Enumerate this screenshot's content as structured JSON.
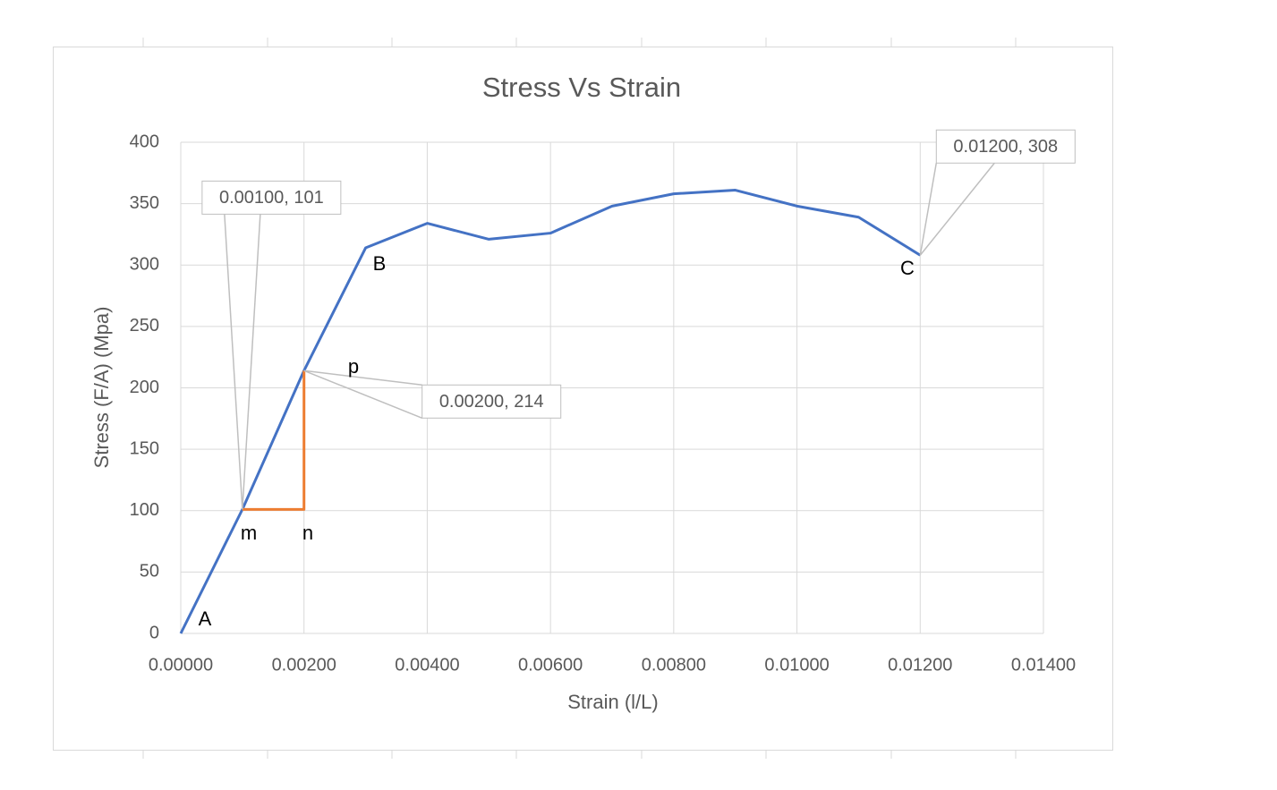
{
  "chart_data": {
    "type": "line",
    "title": "Stress Vs Strain",
    "x_label": "Strain (l/L)",
    "y_label": "Stress (F/A) (Mpa)",
    "xlim": [
      0,
      0.014
    ],
    "ylim": [
      0,
      400
    ],
    "xticks": [
      {
        "value": 0,
        "label": "0.00000"
      },
      {
        "value": 0.002,
        "label": "0.00200"
      },
      {
        "value": 0.004,
        "label": "0.00400"
      },
      {
        "value": 0.006,
        "label": "0.00600"
      },
      {
        "value": 0.008,
        "label": "0.00800"
      },
      {
        "value": 0.01,
        "label": "0.01000"
      },
      {
        "value": 0.012,
        "label": "0.01200"
      },
      {
        "value": 0.014,
        "label": "0.01400"
      }
    ],
    "yticks": [
      0,
      50,
      100,
      150,
      200,
      250,
      300,
      350,
      400
    ],
    "grid": true,
    "series": [
      {
        "color": "#4472c4",
        "x": [
          0,
          0.001,
          0.002,
          0.003,
          0.004,
          0.005,
          0.006,
          0.007,
          0.008,
          0.009,
          0.01,
          0.011,
          0.012
        ],
        "values": [
          0,
          101,
          214,
          314,
          334,
          321,
          326,
          348,
          358,
          361,
          348,
          339,
          308
        ],
        "value_labels": [
          null,
          "0.00100, 101",
          "0.00200, 214",
          null,
          null,
          null,
          null,
          null,
          null,
          null,
          null,
          null,
          "0.01200, 308"
        ]
      },
      {
        "color": "#ed7d31",
        "x": [
          0.001,
          0.002,
          0.002
        ],
        "values": [
          101,
          101,
          214
        ]
      }
    ],
    "annotations": [
      {
        "text": "A"
      },
      {
        "text": "B"
      },
      {
        "text": "C"
      },
      {
        "text": "m"
      },
      {
        "text": "n"
      },
      {
        "text": "p"
      }
    ]
  }
}
